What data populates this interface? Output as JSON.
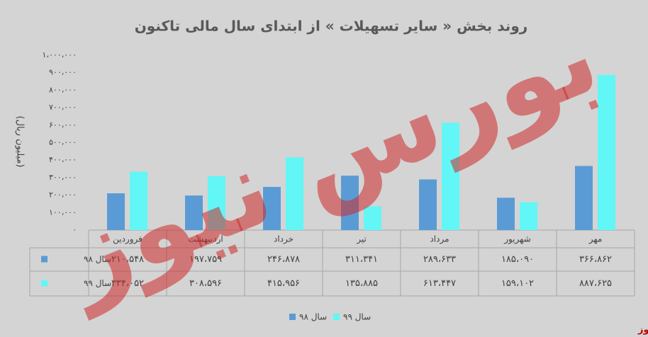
{
  "chart_data": {
    "type": "bar",
    "title": "روند بخش « سایر تسهیلات » از ابتدای سال مالی تاکنون",
    "y_label": "(میلیون ریال)",
    "categories": [
      "فروردین",
      "اردیبهشت",
      "خرداد",
      "تیر",
      "مرداد",
      "شهریور",
      "مهر"
    ],
    "series": [
      {
        "name": "سال ۹۸",
        "color": "#5b9bd5",
        "values": [
          210548,
          197759,
          246878,
          311341,
          289633,
          185090,
          366862
        ],
        "value_labels": [
          "۲۱۰،۵۴۸",
          "۱۹۷،۷۵۹",
          "۲۴۶،۸۷۸",
          "۳۱۱،۳۴۱",
          "۲۸۹،۶۳۳",
          "۱۸۵،۰۹۰",
          "۳۶۶،۸۶۲"
        ]
      },
      {
        "name": "سال ۹۹",
        "color": "#62f6f6",
        "values": [
          334052,
          308596,
          415956,
          135885,
          613447,
          159102,
          887625
        ],
        "value_labels": [
          "۳۳۴،۰۵۲",
          "۳۰۸،۵۹۶",
          "۴۱۵،۹۵۶",
          "۱۳۵،۸۸۵",
          "۶۱۳،۴۴۷",
          "۱۵۹،۱۰۲",
          "۸۸۷،۶۲۵"
        ]
      }
    ],
    "ylim": [
      0,
      1000000
    ],
    "yticks": [
      {
        "value": 0,
        "label": "۰"
      },
      {
        "value": 100000,
        "label": "۱۰۰،۰۰۰"
      },
      {
        "value": 200000,
        "label": "۲۰۰،۰۰۰"
      },
      {
        "value": 300000,
        "label": "۳۰۰،۰۰۰"
      },
      {
        "value": 400000,
        "label": "۴۰۰،۰۰۰"
      },
      {
        "value": 500000,
        "label": "۵۰۰،۰۰۰"
      },
      {
        "value": 600000,
        "label": "۶۰۰،۰۰۰"
      },
      {
        "value": 700000,
        "label": "۷۰۰،۰۰۰"
      },
      {
        "value": 800000,
        "label": "۸۰۰،۰۰۰"
      },
      {
        "value": 900000,
        "label": "۹۰۰،۰۰۰"
      },
      {
        "value": 1000000,
        "label": "۱،۰۰۰،۰۰۰"
      }
    ],
    "grid": false,
    "legend": "bottom",
    "watermark": "بورس نیوز",
    "source": "بورس نیوز"
  }
}
